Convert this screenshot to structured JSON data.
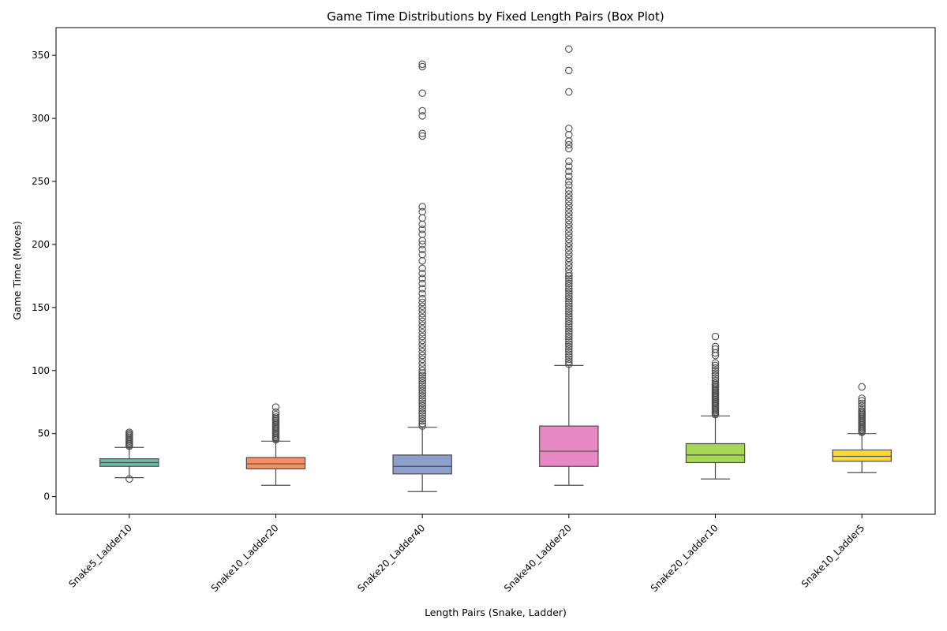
{
  "chart_data": {
    "type": "box",
    "title": "Game Time Distributions by Fixed Length Pairs (Box Plot)",
    "xlabel": "Length Pairs (Snake, Ladder)",
    "ylabel": "Game Time (Moves)",
    "ylim": [
      -14,
      372
    ],
    "yticks": [
      0,
      50,
      100,
      150,
      200,
      250,
      300,
      350
    ],
    "grid": false,
    "legend": "none",
    "categories": [
      "Snake5_Ladder10",
      "Snake10_Ladder20",
      "Snake20_Ladder40",
      "Snake40_Ladder20",
      "Snake20_Ladder10",
      "Snake10_Ladder5"
    ],
    "colors": [
      "#66c2a5",
      "#fc8d62",
      "#8da0cb",
      "#e78ac3",
      "#a6d854",
      "#ffd92f"
    ],
    "boxes": [
      {
        "whisker_low": 15,
        "q1": 24,
        "median": 27,
        "q3": 30,
        "whisker_high": 39,
        "outliers": [
          14,
          40,
          41,
          42,
          43,
          44,
          45,
          46,
          47,
          48,
          49,
          50,
          51
        ]
      },
      {
        "whisker_low": 9,
        "q1": 22,
        "median": 26,
        "q3": 31,
        "whisker_high": 44,
        "outliers": [
          45,
          46,
          47,
          48,
          49,
          50,
          51,
          52,
          53,
          54,
          55,
          56,
          57,
          58,
          59,
          60,
          61,
          62,
          63,
          65,
          67,
          71
        ]
      },
      {
        "whisker_low": 4,
        "q1": 18,
        "median": 24,
        "q3": 33,
        "whisker_high": 55,
        "outliers": [
          56,
          58,
          60,
          62,
          64,
          66,
          68,
          70,
          72,
          74,
          76,
          78,
          80,
          82,
          84,
          86,
          88,
          90,
          92,
          94,
          96,
          98,
          100,
          103,
          106,
          109,
          112,
          115,
          118,
          121,
          124,
          127,
          130,
          133,
          136,
          139,
          142,
          145,
          148,
          151,
          154,
          157,
          161,
          165,
          169,
          173,
          177,
          181,
          187,
          192,
          196,
          200,
          203,
          208,
          212,
          216,
          221,
          226,
          230,
          286,
          288,
          302,
          306,
          320,
          341,
          343
        ]
      },
      {
        "whisker_low": 9,
        "q1": 24,
        "median": 36,
        "q3": 56,
        "whisker_high": 104,
        "outliers": [
          105,
          107,
          109,
          111,
          113,
          115,
          117,
          119,
          121,
          123,
          125,
          127,
          129,
          131,
          133,
          135,
          137,
          139,
          141,
          143,
          145,
          147,
          149,
          151,
          153,
          155,
          157,
          159,
          161,
          163,
          165,
          167,
          169,
          171,
          173,
          175,
          177,
          180,
          183,
          186,
          189,
          192,
          195,
          198,
          201,
          204,
          207,
          210,
          213,
          216,
          219,
          222,
          225,
          228,
          231,
          234,
          237,
          240,
          243,
          247,
          250,
          254,
          258,
          262,
          266,
          276,
          279,
          282,
          287,
          292,
          321,
          338,
          355
        ]
      },
      {
        "whisker_low": 14,
        "q1": 27,
        "median": 33,
        "q3": 42,
        "whisker_high": 64,
        "outliers": [
          65,
          66,
          67,
          68,
          69,
          70,
          71,
          72,
          73,
          74,
          75,
          76,
          77,
          78,
          79,
          80,
          81,
          82,
          83,
          84,
          85,
          86,
          87,
          88,
          89,
          90,
          92,
          94,
          96,
          98,
          100,
          102,
          104,
          106,
          112,
          114,
          117,
          119,
          127
        ]
      },
      {
        "whisker_low": 19,
        "q1": 28,
        "median": 32,
        "q3": 37,
        "whisker_high": 50,
        "outliers": [
          51,
          52,
          53,
          54,
          55,
          56,
          57,
          58,
          59,
          60,
          61,
          62,
          63,
          64,
          65,
          66,
          67,
          68,
          70,
          72,
          74,
          76,
          78,
          87
        ]
      }
    ]
  }
}
